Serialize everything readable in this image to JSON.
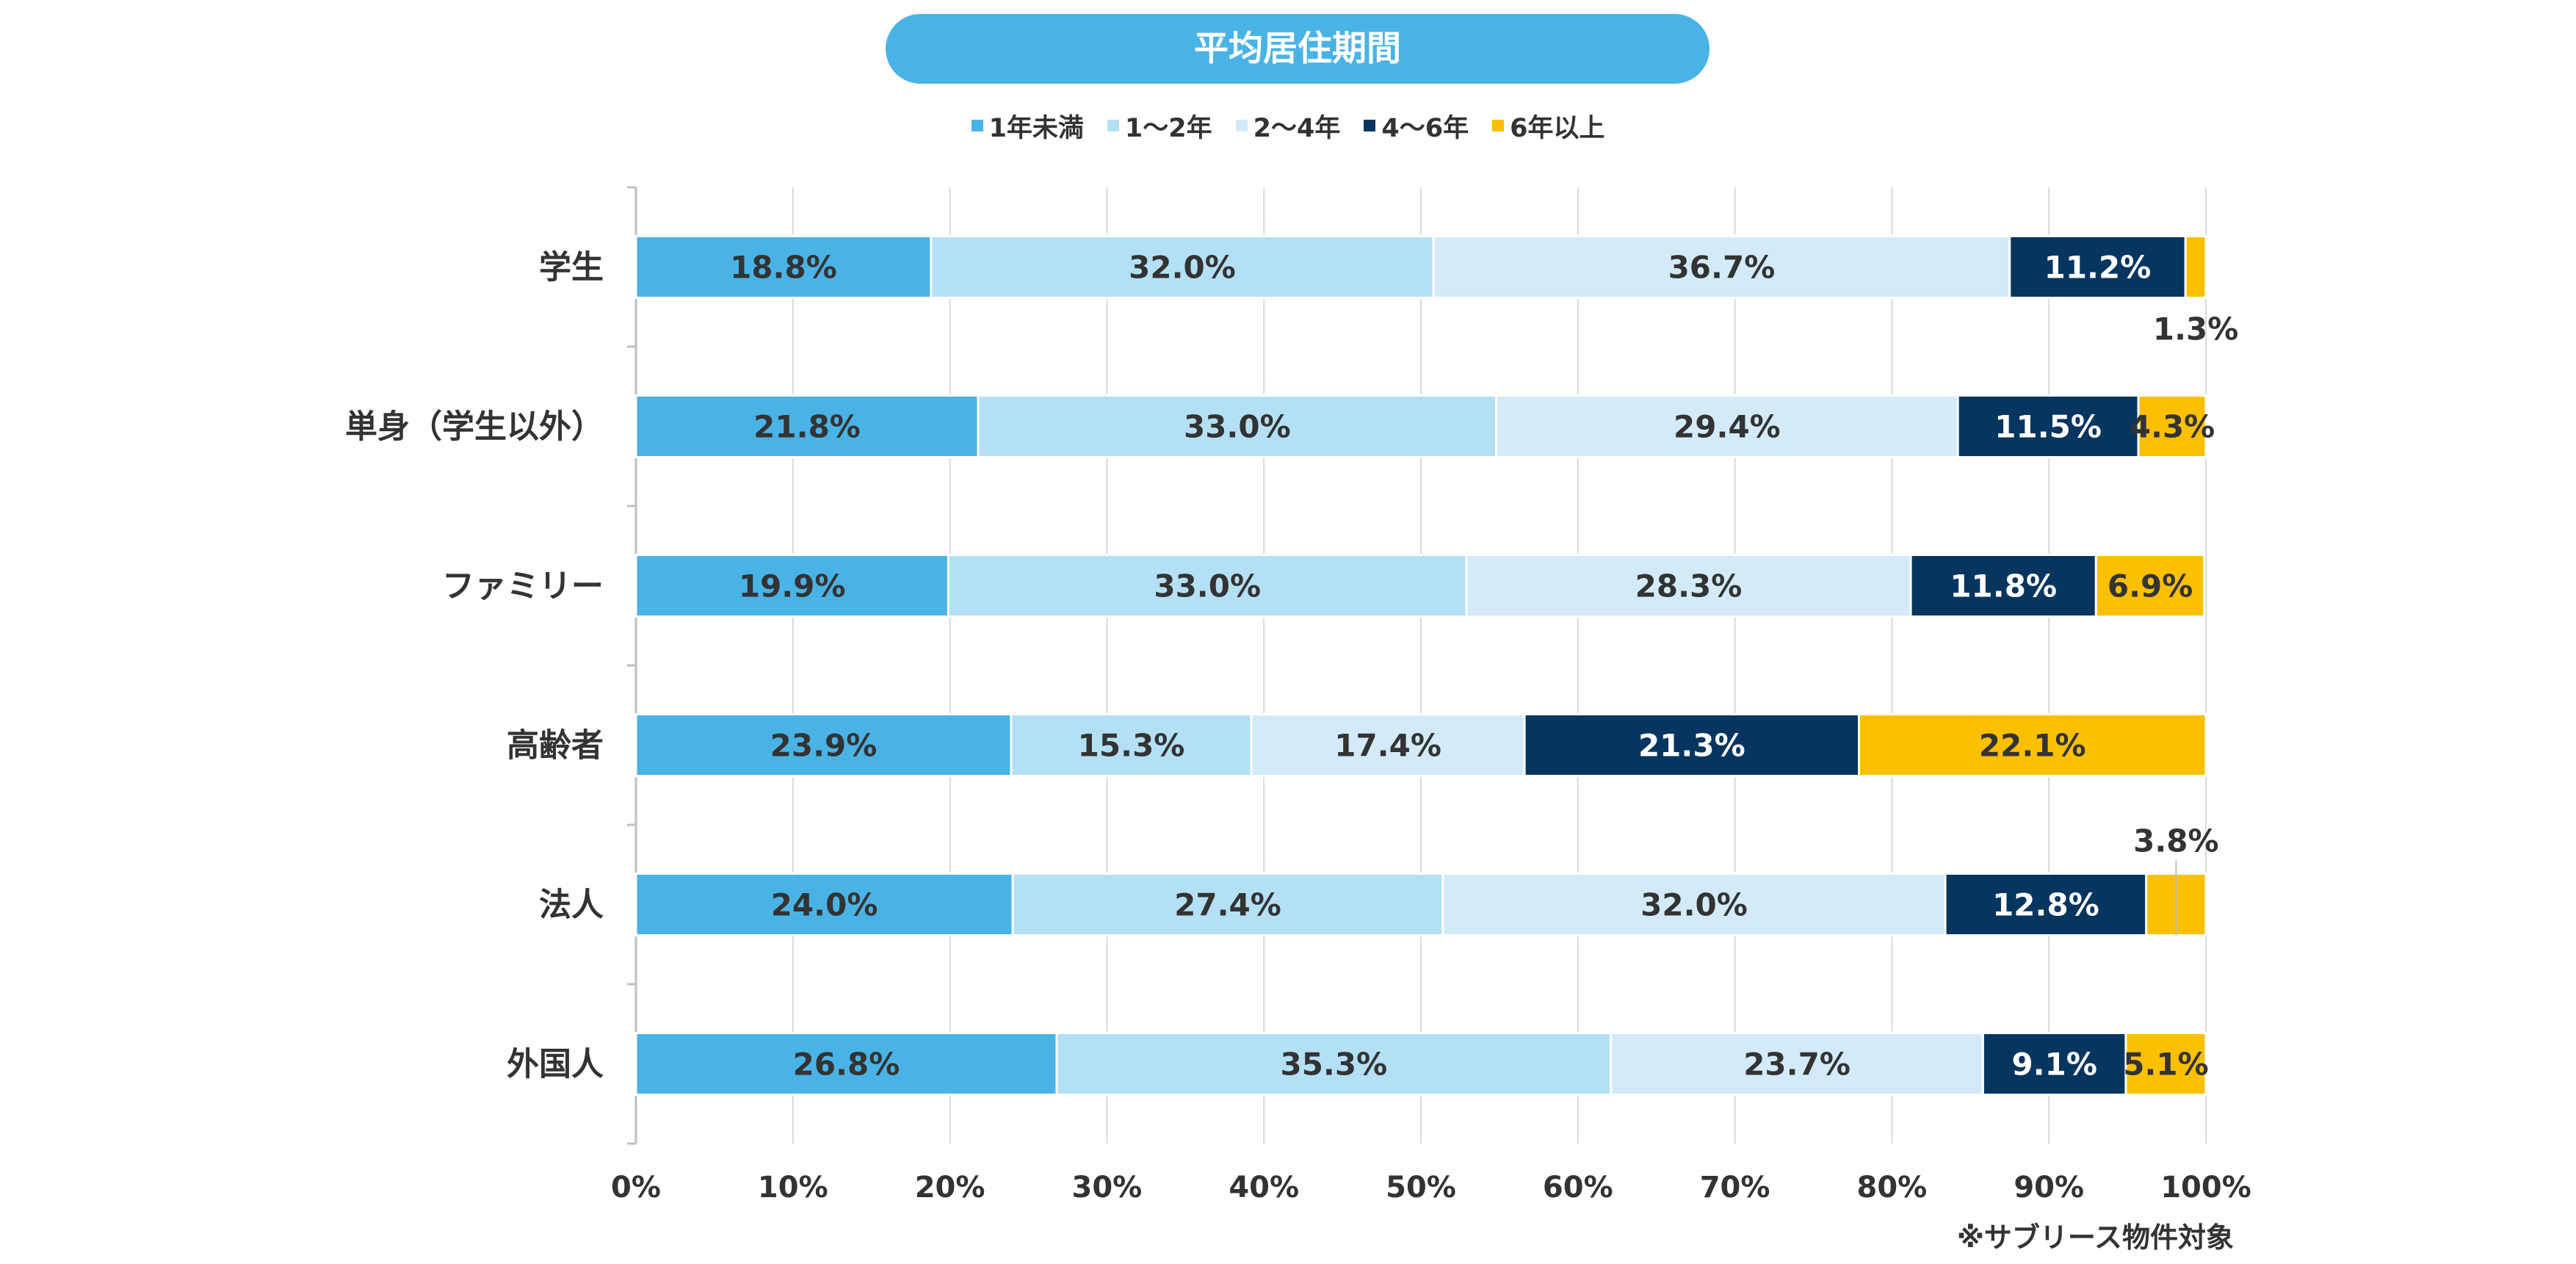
{
  "chart_data": {
    "type": "bar",
    "orientation": "horizontal",
    "stacked": true,
    "title": "平均居住期間",
    "categories": [
      "学生",
      "単身（学生以外）",
      "ファミリー",
      "高齢者",
      "法人",
      "外国人"
    ],
    "series": [
      {
        "name": "1年未満",
        "color": "#4ab3e6",
        "values": [
          18.8,
          21.8,
          19.9,
          23.9,
          24.0,
          26.8
        ],
        "labels": [
          "18.8%",
          "21.8%",
          "19.9%",
          "23.9%",
          "24.0%",
          "26.8%"
        ]
      },
      {
        "name": "1～2年",
        "color": "#b4e0f5",
        "values": [
          32.0,
          33.0,
          33.0,
          15.3,
          27.4,
          35.3
        ],
        "labels": [
          "32.0%",
          "33.0%",
          "33.0%",
          "15.3%",
          "27.4%",
          "35.3%"
        ]
      },
      {
        "name": "2～4年",
        "color": "#d3ebf9",
        "values": [
          36.7,
          29.4,
          28.3,
          17.4,
          32.0,
          23.7
        ],
        "labels": [
          "36.7%",
          "29.4%",
          "28.3%",
          "17.4%",
          "32.0%",
          "23.7%"
        ]
      },
      {
        "name": "4～6年",
        "color": "#06355f",
        "values": [
          11.2,
          11.5,
          11.8,
          21.3,
          12.8,
          9.1
        ],
        "labels": [
          "11.2%",
          "11.5%",
          "11.8%",
          "21.3%",
          "12.8%",
          "9.1%"
        ]
      },
      {
        "name": "6年以上",
        "color": "#fcc000",
        "values": [
          1.3,
          4.3,
          6.9,
          22.1,
          3.8,
          5.1
        ],
        "labels": [
          "1.3%",
          "4.3%",
          "6.9%",
          "22.1%",
          "3.8%",
          "5.1%"
        ]
      }
    ],
    "xlim": [
      0,
      100
    ],
    "xticks": [
      "0%",
      "10%",
      "20%",
      "30%",
      "40%",
      "50%",
      "60%",
      "70%",
      "80%",
      "90%",
      "100%"
    ],
    "legend_position": "top",
    "grid": true
  },
  "note": "※サブリース物件対象"
}
